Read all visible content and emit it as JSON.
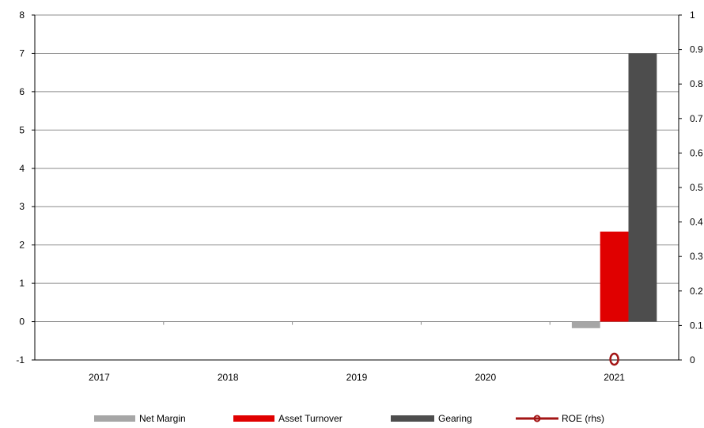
{
  "chart_data": {
    "type": "bar",
    "categories": [
      "2017",
      "2018",
      "2019",
      "2020",
      "2021"
    ],
    "series": [
      {
        "name": "Net Margin",
        "axis": "left",
        "values": [
          null,
          null,
          null,
          null,
          -0.17
        ],
        "color": "#a6a6a6"
      },
      {
        "name": "Asset Turnover",
        "axis": "left",
        "values": [
          null,
          null,
          null,
          null,
          2.35
        ],
        "color": "#e00000"
      },
      {
        "name": "Gearing",
        "axis": "left",
        "values": [
          null,
          null,
          null,
          null,
          7.0
        ],
        "color": "#4d4d4d"
      },
      {
        "name": "ROE (rhs)",
        "axis": "right",
        "type": "line",
        "values": [
          null,
          null,
          null,
          null,
          0
        ],
        "color": "#a31515"
      }
    ],
    "left_axis": {
      "min": -1,
      "max": 8,
      "ticks": [
        "-1",
        "0",
        "1",
        "2",
        "3",
        "4",
        "5",
        "6",
        "7",
        "8"
      ]
    },
    "right_axis": {
      "min": 0,
      "max": 1,
      "ticks": [
        "0",
        "0.1",
        "0.2",
        "0.3",
        "0.4",
        "0.5",
        "0.6",
        "0.7",
        "0.8",
        "0.9",
        "1"
      ]
    },
    "grid": true,
    "legend_position": "bottom"
  }
}
